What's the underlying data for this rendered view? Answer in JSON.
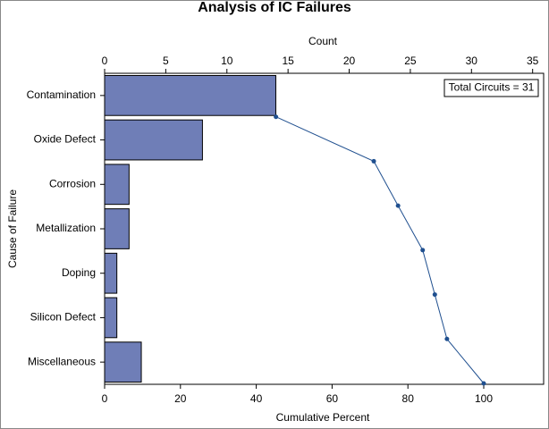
{
  "chart_data": {
    "type": "pareto",
    "title": "Analysis of IC Failures",
    "ylabel": "Cause of Failure",
    "xlabel": "Cumulative Percent",
    "x2label": "Count",
    "categories": [
      "Contamination",
      "Oxide Defect",
      "Corrosion",
      "Metallization",
      "Doping",
      "Silicon Defect",
      "Miscellaneous"
    ],
    "series": [
      {
        "values": [
          14,
          8,
          2,
          2,
          1,
          1,
          3
        ],
        "color": "#6f7eb7",
        "axis": "x2"
      },
      {
        "values": [
          45.2,
          71.0,
          77.4,
          83.9,
          87.1,
          90.3,
          100
        ],
        "color": "#1f4f8f"
      }
    ],
    "x2lim": [
      0,
      35.9
    ],
    "x2ticks": [
      0,
      5,
      10,
      15,
      20,
      25,
      30,
      35
    ],
    "xlim": [
      0,
      115.8
    ],
    "xticks": [
      0,
      20,
      40,
      60,
      80,
      100
    ],
    "annotation": "Total Circuits = 31"
  }
}
